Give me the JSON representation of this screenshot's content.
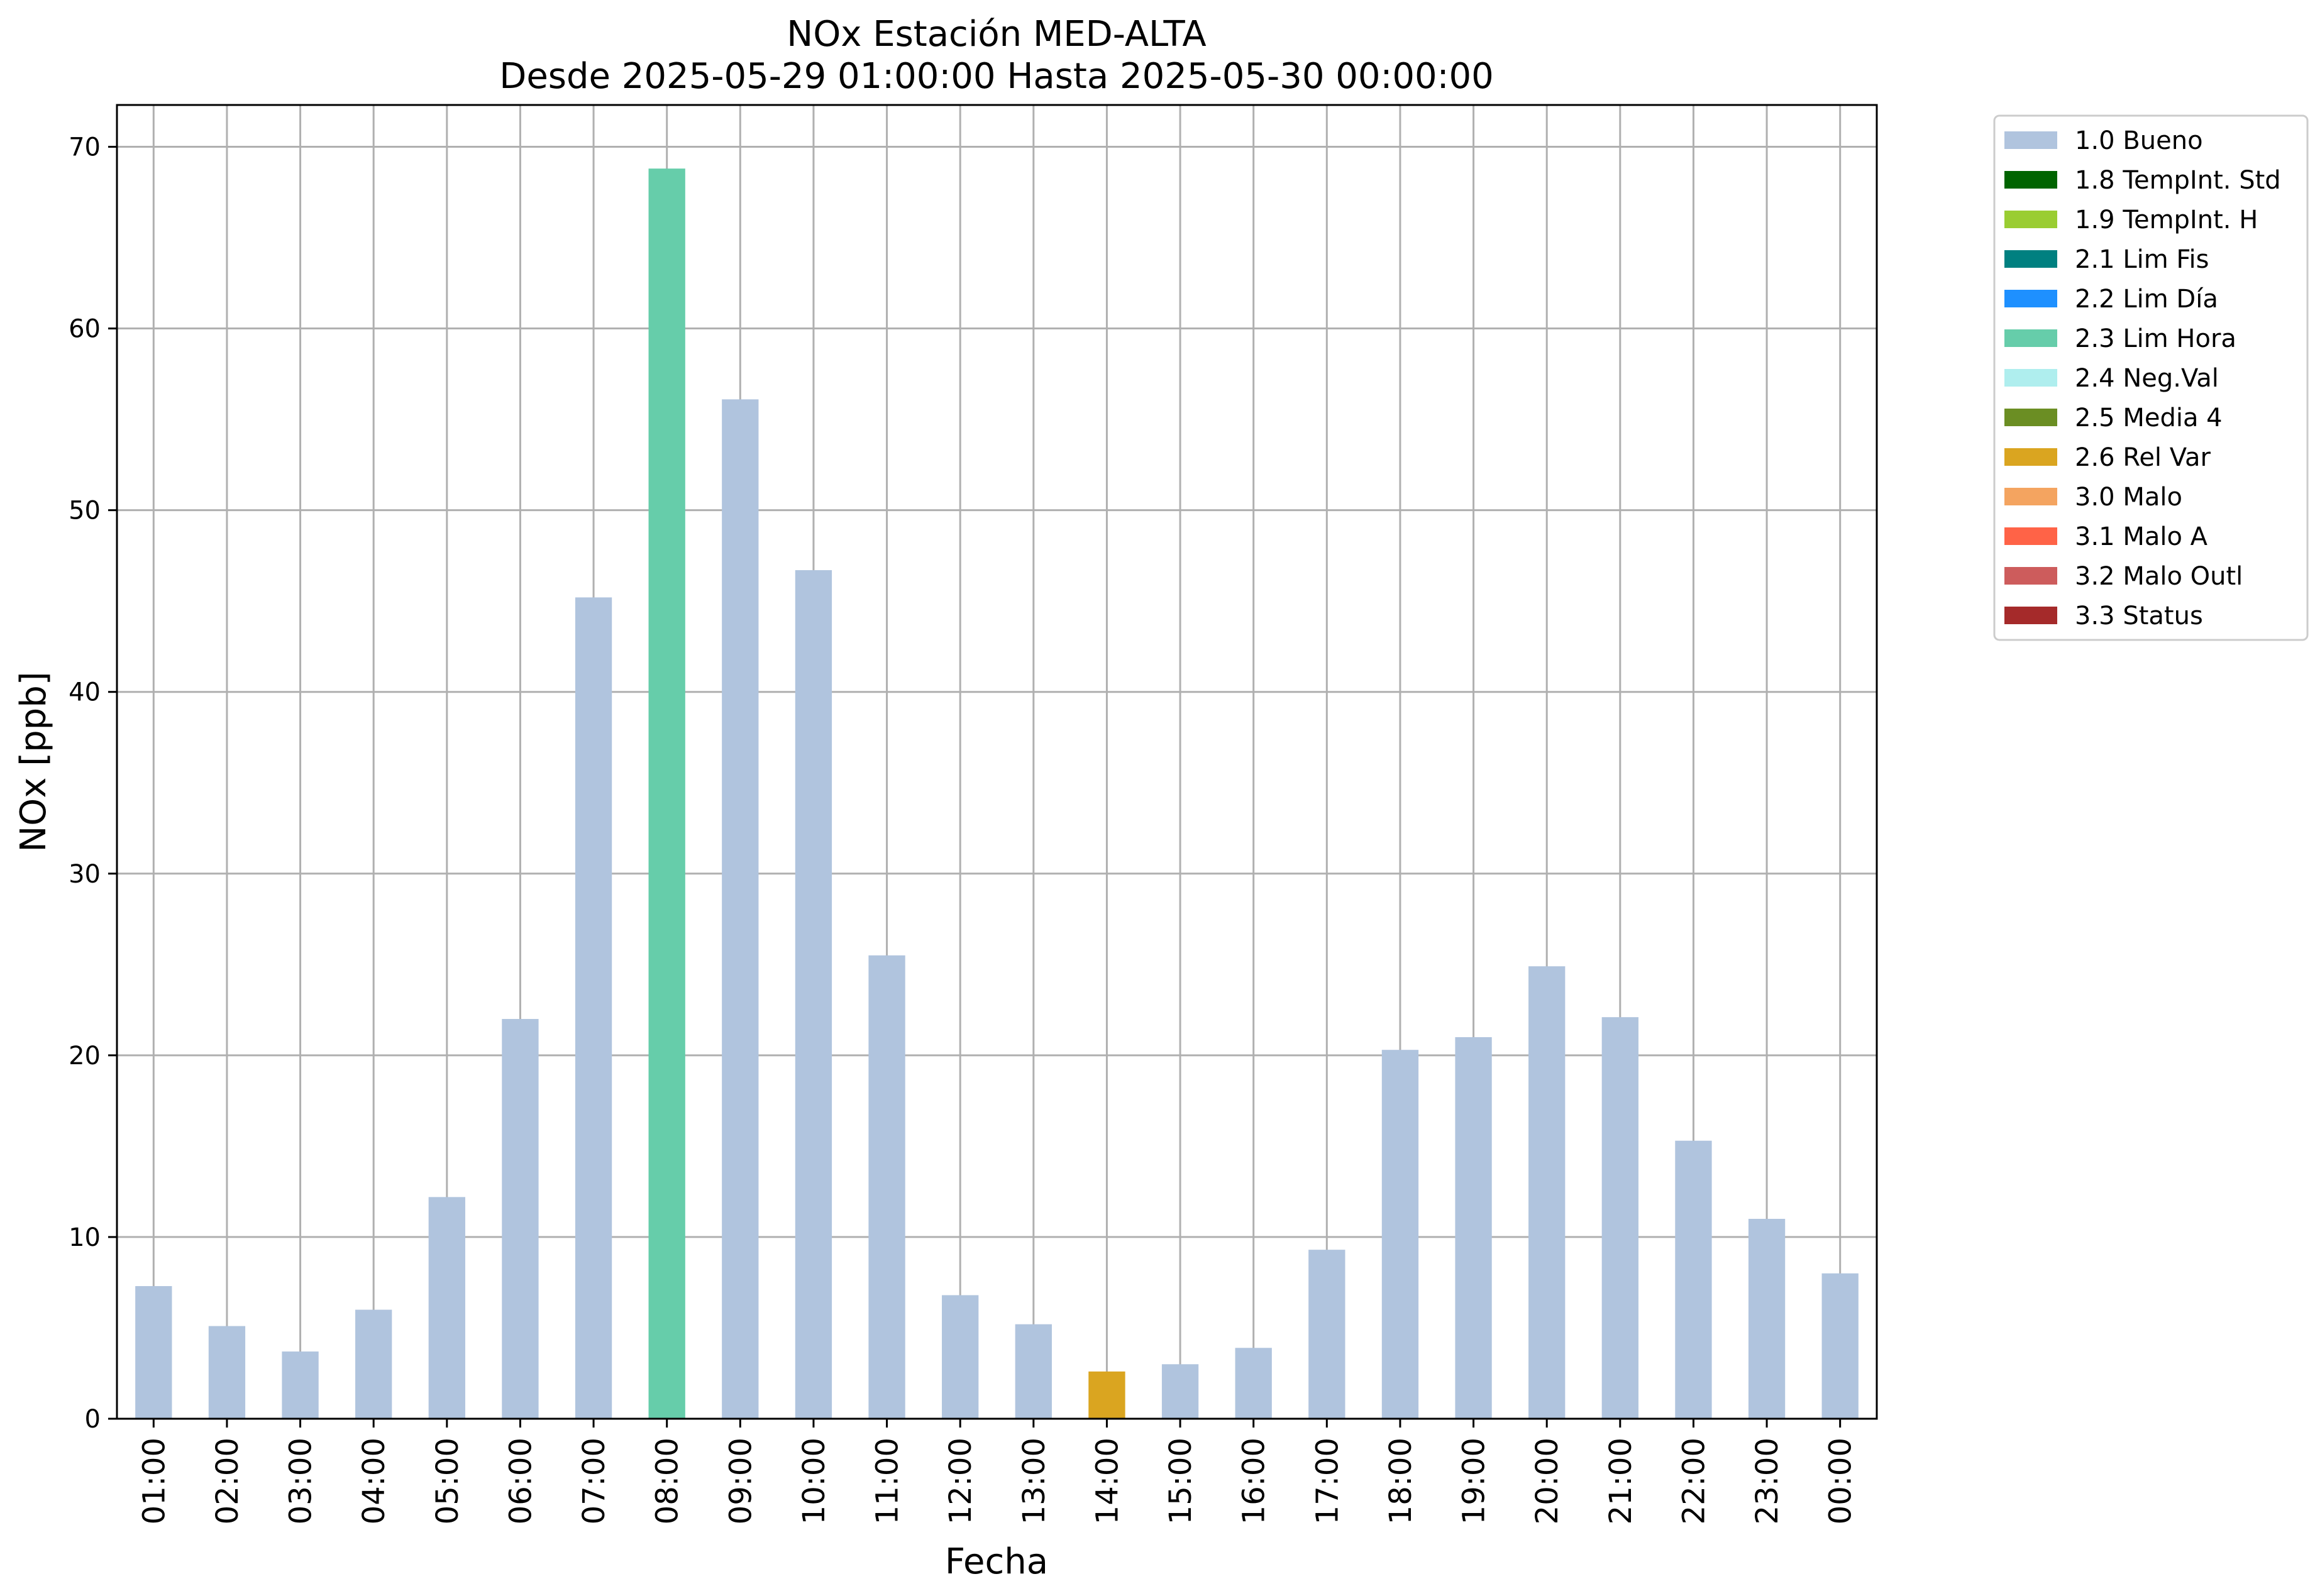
{
  "chart_data": {
    "type": "bar",
    "title": "NOx Estación MED-ALTA",
    "subtitle": "Desde 2025-05-29 01:00:00 Hasta 2025-05-30 00:00:00",
    "xlabel": "Fecha",
    "ylabel": "NOx [ppb]",
    "ylim": [
      0,
      72.3
    ],
    "yticks": [
      0,
      10,
      20,
      30,
      40,
      50,
      60,
      70
    ],
    "grid": true,
    "legend_position": "outside-right",
    "categories": [
      "01:00",
      "02:00",
      "03:00",
      "04:00",
      "05:00",
      "06:00",
      "07:00",
      "08:00",
      "09:00",
      "10:00",
      "11:00",
      "12:00",
      "13:00",
      "14:00",
      "15:00",
      "16:00",
      "17:00",
      "18:00",
      "19:00",
      "20:00",
      "21:00",
      "22:00",
      "23:00",
      "00:00"
    ],
    "values": [
      7.3,
      5.1,
      3.7,
      6.0,
      12.2,
      22.0,
      45.2,
      68.8,
      56.1,
      46.7,
      25.5,
      6.8,
      5.2,
      2.6,
      3.0,
      3.9,
      9.3,
      20.3,
      21.0,
      24.9,
      22.1,
      15.3,
      11.0,
      8.0
    ],
    "flags": [
      "1.0 Bueno",
      "1.0 Bueno",
      "1.0 Bueno",
      "1.0 Bueno",
      "1.0 Bueno",
      "1.0 Bueno",
      "1.0 Bueno",
      "2.3 Lim Hora",
      "1.0 Bueno",
      "1.0 Bueno",
      "1.0 Bueno",
      "1.0 Bueno",
      "1.0 Bueno",
      "2.6 Rel Var",
      "1.0 Bueno",
      "1.0 Bueno",
      "1.0 Bueno",
      "1.0 Bueno",
      "1.0 Bueno",
      "1.0 Bueno",
      "1.0 Bueno",
      "1.0 Bueno",
      "1.0 Bueno",
      "1.0 Bueno"
    ],
    "legend": [
      {
        "label": "1.0 Bueno",
        "color": "#b0c4de"
      },
      {
        "label": "1.8 TempInt. Std",
        "color": "#006400"
      },
      {
        "label": "1.9 TempInt. H",
        "color": "#9acd32"
      },
      {
        "label": "2.1 Lim Fis",
        "color": "#008080"
      },
      {
        "label": "2.2 Lim Día",
        "color": "#1e90ff"
      },
      {
        "label": "2.3 Lim Hora",
        "color": "#66cdaa"
      },
      {
        "label": "2.4 Neg.Val",
        "color": "#afeeee"
      },
      {
        "label": "2.5 Media 4",
        "color": "#6b8e23"
      },
      {
        "label": "2.6 Rel Var",
        "color": "#daa520"
      },
      {
        "label": "3.0 Malo",
        "color": "#f4a460"
      },
      {
        "label": "3.1 Malo A",
        "color": "#ff6347"
      },
      {
        "label": "3.2 Malo Outl",
        "color": "#cd5c5c"
      },
      {
        "label": "3.3 Status",
        "color": "#a52a2a"
      }
    ]
  }
}
